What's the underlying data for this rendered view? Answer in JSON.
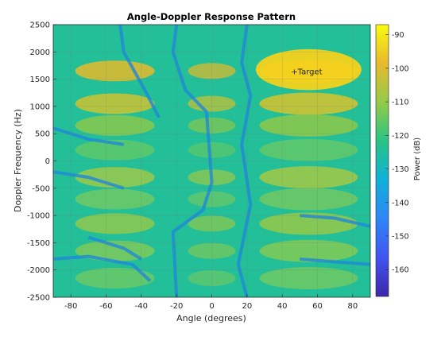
{
  "chart_data": {
    "type": "heatmap",
    "title": "Angle-Doppler Response Pattern",
    "xlabel": "Angle (degrees)",
    "ylabel": "Doppler Frequency (Hz)",
    "colorbar_label": "Power (dB)",
    "xlim": [
      -90,
      90
    ],
    "ylim": [
      -2500,
      2500
    ],
    "clim": [
      -168,
      -87
    ],
    "x_ticks": [
      -80,
      -60,
      -40,
      -20,
      0,
      20,
      40,
      60,
      80
    ],
    "y_ticks": [
      2500,
      2000,
      1500,
      1000,
      500,
      0,
      -500,
      -1000,
      -1500,
      -2000,
      -2500
    ],
    "colorbar_ticks": [
      -90,
      -100,
      -110,
      -120,
      -130,
      -140,
      -150,
      -160
    ],
    "grid": true,
    "colormap": "parula",
    "annotation": {
      "text": "+Target",
      "x": 45,
      "y": 1650
    },
    "peak_region": {
      "angle_range": [
        25,
        85
      ],
      "doppler_range": [
        1300,
        2050
      ],
      "peak_db": -90
    },
    "band_centers_hz": [
      1650,
      1050,
      650,
      200,
      -300,
      -700,
      -1150,
      -1650,
      -2150
    ]
  }
}
